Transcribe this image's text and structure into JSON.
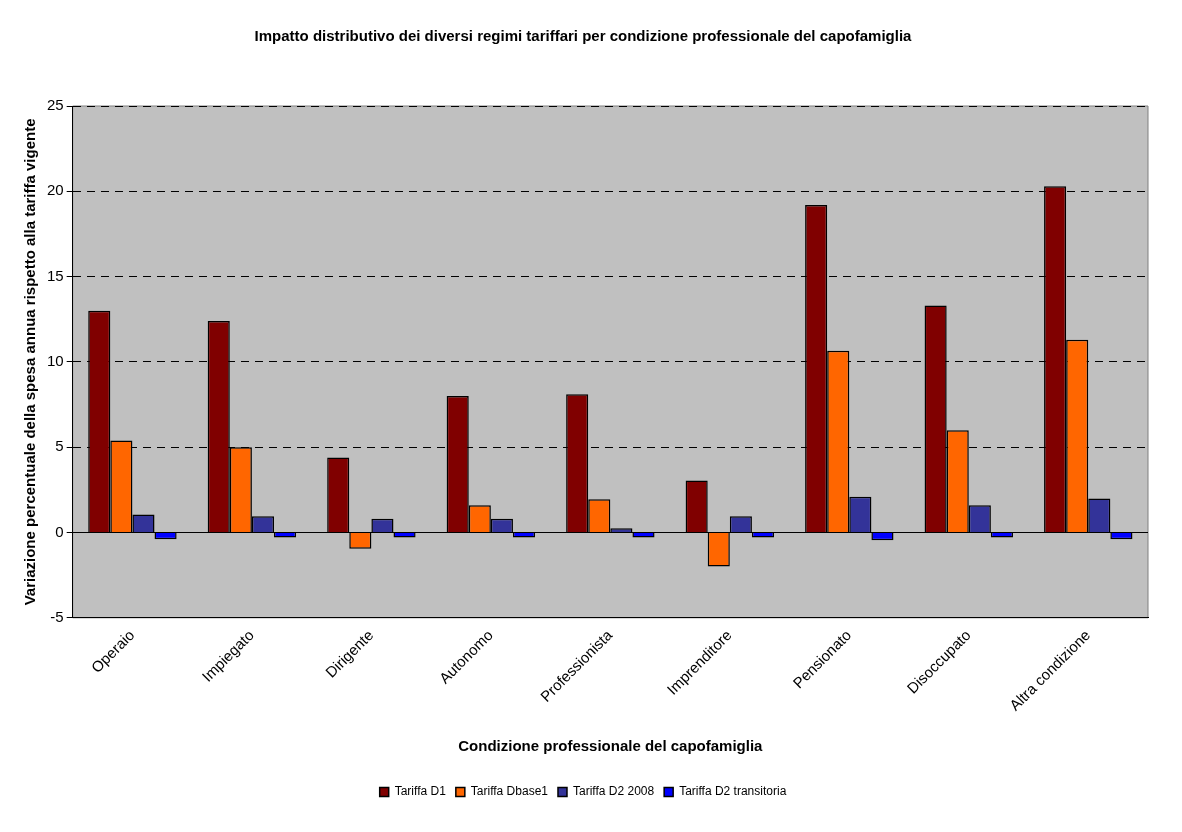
{
  "chart_data": {
    "type": "bar",
    "title": "Impatto distributivo dei diversi regimi tariffari per condizione professionale del capofamiglia",
    "xlabel": "Condizione professionale del capofamiglia",
    "ylabel": "Variazione percentuale della spesa annua rispetto alla tariffa vigente",
    "categories": [
      "Operaio",
      "Impiegato",
      "Dirigente",
      "Autonomo",
      "Professionista",
      "Imprenditore",
      "Pensionato",
      "Disoccupato",
      "Altra condizione"
    ],
    "series": [
      {
        "name": "Tariffa D1",
        "color": "#800000",
        "values": [
          13.0,
          12.4,
          4.4,
          8.0,
          8.1,
          3.05,
          19.2,
          13.3,
          20.3
        ]
      },
      {
        "name": "Tariffa Dbase1",
        "color": "#ff6600",
        "values": [
          5.4,
          5.0,
          -0.95,
          1.6,
          1.95,
          -2.0,
          10.65,
          6.0,
          11.3
        ]
      },
      {
        "name": "Tariffa D2 2008",
        "color": "#333399",
        "values": [
          1.05,
          0.95,
          0.8,
          0.8,
          0.25,
          0.95,
          2.1,
          1.6,
          2.0
        ]
      },
      {
        "name": "Tariffa D2 transitoria",
        "color": "#0000ff",
        "values": [
          -0.4,
          -0.3,
          -0.3,
          -0.3,
          -0.3,
          -0.3,
          -0.45,
          -0.3,
          -0.4
        ]
      }
    ],
    "ylim": [
      -5,
      25
    ],
    "yticks": [
      -5,
      0,
      5,
      10,
      15,
      20,
      25
    ],
    "grid": "y",
    "legend": "bottom"
  }
}
